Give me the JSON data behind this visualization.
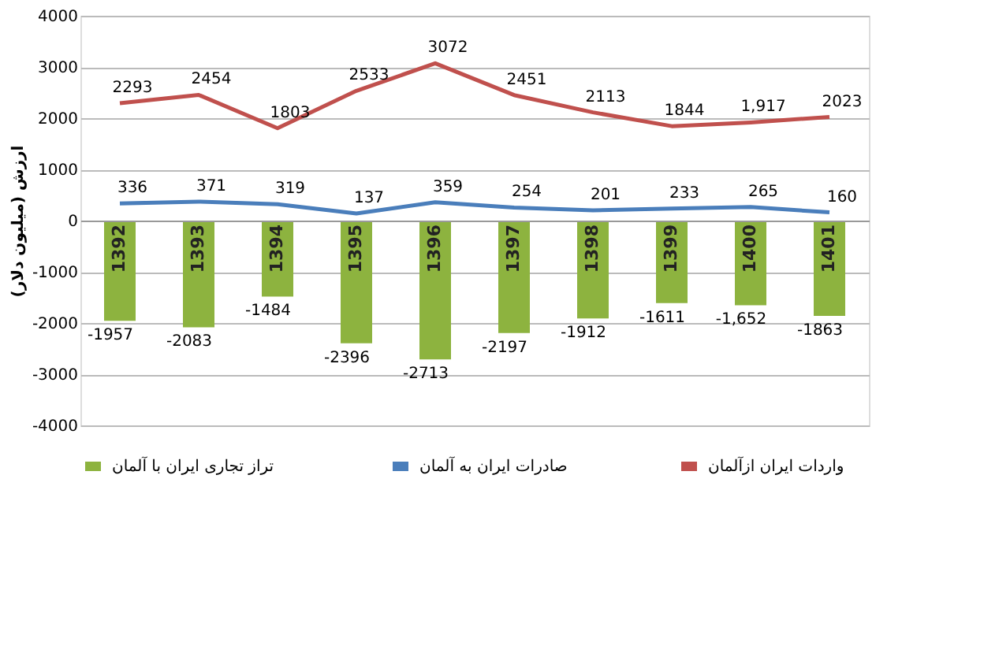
{
  "chart_data": {
    "type": "bar",
    "ylabel": "ارزش (میلیون دلار)",
    "categories": [
      "1392",
      "1393",
      "1394",
      "1395",
      "1396",
      "1397",
      "1398",
      "1399",
      "1400",
      "1401"
    ],
    "series": [
      {
        "name": "تراز تجاری  ایران با آلمان",
        "type": "bar",
        "color": "#8db33f",
        "values": [
          -1957,
          -2083,
          -1484,
          -2396,
          -2713,
          -2197,
          -1912,
          -1611,
          -1652,
          -1863
        ],
        "value_labels": [
          "-1957",
          "-2083",
          "-1484",
          "-2396",
          "-2713",
          "-2197",
          "-1912",
          "-1611",
          "-1,652",
          "-1863"
        ]
      },
      {
        "name": "صادرات ایران به آلمان",
        "type": "line",
        "color": "#4a7ebb",
        "values": [
          336,
          371,
          319,
          137,
          359,
          254,
          201,
          233,
          265,
          160
        ],
        "value_labels": [
          "336",
          "371",
          "319",
          "137",
          "359",
          "254",
          "201",
          "233",
          "265",
          "160"
        ]
      },
      {
        "name": "واردات ایران ازآلمان",
        "type": "line",
        "color": "#c0504d",
        "values": [
          2293,
          2454,
          1803,
          2533,
          3072,
          2451,
          2113,
          1844,
          1917,
          2023
        ],
        "value_labels": [
          "2293",
          "2454",
          "1803",
          "2533",
          "3072",
          "2451",
          "2113",
          "1844",
          "1,917",
          "2023"
        ]
      }
    ],
    "ylim": [
      -4000,
      4000
    ],
    "yticks": [
      -4000,
      -3000,
      -2000,
      -1000,
      0,
      1000,
      2000,
      3000,
      4000
    ],
    "grid": "y",
    "legend": "bottom"
  }
}
